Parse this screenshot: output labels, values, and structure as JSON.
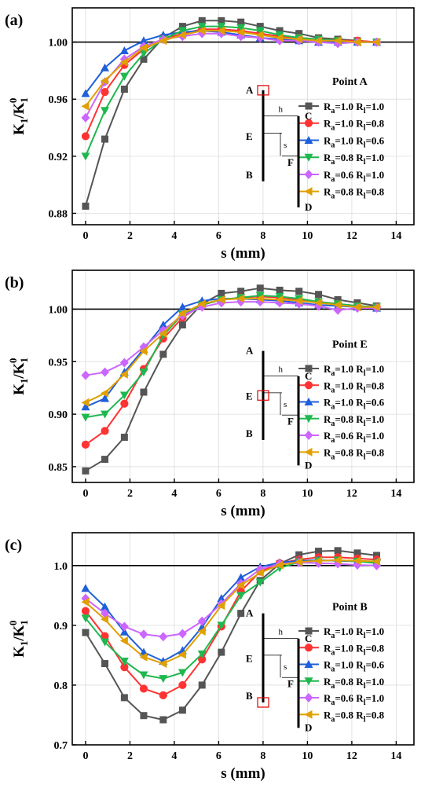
{
  "chart_data": [
    {
      "type": "line",
      "panel_label": "(a)",
      "xlabel": "s (mm)",
      "ylabel_main": "K",
      "ylabel_sub": "1",
      "ylabel_den": "K",
      "ylabel_den_sub": "1",
      "ylabel_den_sup": "0",
      "xlim": [
        -0.6,
        14.8
      ],
      "ylim": [
        0.872,
        1.024
      ],
      "xticks": [
        0,
        2,
        4,
        6,
        8,
        10,
        12,
        14
      ],
      "yticks": [
        0.88,
        0.92,
        0.96,
        1.0
      ],
      "ytick_labels": [
        "0.88",
        "0.92",
        "0.96",
        "1.00"
      ],
      "reference_line": 1.0,
      "legend_title": "Point A",
      "highlight": "A",
      "x": [
        0,
        0.87,
        1.75,
        2.62,
        3.5,
        4.37,
        5.25,
        6.12,
        7.0,
        7.87,
        8.75,
        9.62,
        10.5,
        11.37,
        12.25,
        13.12
      ],
      "series": [
        {
          "name_ra": "1.0",
          "name_rl": "1.0",
          "marker": "square",
          "color": "#555555",
          "values": [
            0.885,
            0.932,
            0.967,
            0.988,
            1.003,
            1.011,
            1.015,
            1.015,
            1.014,
            1.011,
            1.008,
            1.006,
            1.003,
            1.002,
            1.001,
            1.0
          ]
        },
        {
          "name_ra": "1.0",
          "name_rl": "0.8",
          "marker": "circle",
          "color": "#ff3333",
          "values": [
            0.934,
            0.965,
            0.984,
            0.995,
            1.002,
            1.006,
            1.009,
            1.009,
            1.008,
            1.006,
            1.004,
            1.003,
            1.002,
            1.001,
            1.001,
            1.0
          ]
        },
        {
          "name_ra": "1.0",
          "name_rl": "0.6",
          "marker": "triangle-up",
          "color": "#1f5fd9",
          "values": [
            0.964,
            0.982,
            0.994,
            1.001,
            1.005,
            1.007,
            1.008,
            1.007,
            1.005,
            1.003,
            1.002,
            1.001,
            1.0,
            1.0,
            1.0,
            1.0
          ]
        },
        {
          "name_ra": "0.8",
          "name_rl": "1.0",
          "marker": "triangle-down",
          "color": "#1fb84f",
          "values": [
            0.92,
            0.952,
            0.976,
            0.992,
            1.002,
            1.008,
            1.011,
            1.011,
            1.01,
            1.008,
            1.005,
            1.003,
            1.002,
            1.001,
            1.0,
            1.0
          ]
        },
        {
          "name_ra": "0.6",
          "name_rl": "1.0",
          "marker": "diamond",
          "color": "#cc66ff",
          "values": [
            0.947,
            0.972,
            0.988,
            0.997,
            1.002,
            1.004,
            1.006,
            1.006,
            1.004,
            1.003,
            1.001,
            1.001,
            1.0,
            0.999,
            1.0,
            1.0
          ]
        },
        {
          "name_ra": "0.8",
          "name_rl": "0.8",
          "marker": "triangle-left",
          "color": "#e0a000",
          "values": [
            0.955,
            0.973,
            0.986,
            0.996,
            1.001,
            1.005,
            1.008,
            1.008,
            1.007,
            1.005,
            1.003,
            1.002,
            1.001,
            1.001,
            1.0,
            1.0
          ]
        }
      ],
      "schematic": {
        "label_A": "A",
        "label_E": "E",
        "label_B": "B",
        "label_C": "C",
        "label_F": "F",
        "label_D": "D",
        "label_h": "h",
        "label_s": "s"
      }
    },
    {
      "type": "line",
      "panel_label": "(b)",
      "xlabel": "s (mm)",
      "ylabel_main": "K",
      "ylabel_sub": "1",
      "ylabel_den": "K",
      "ylabel_den_sub": "1",
      "ylabel_den_sup": "0",
      "xlim": [
        -0.6,
        14.8
      ],
      "ylim": [
        0.835,
        1.037
      ],
      "xticks": [
        0,
        2,
        4,
        6,
        8,
        10,
        12,
        14
      ],
      "yticks": [
        0.85,
        0.9,
        0.95,
        1.0
      ],
      "ytick_labels": [
        "0.85",
        "0.90",
        "0.95",
        "1.00"
      ],
      "reference_line": 1.0,
      "legend_title": "Point E",
      "highlight": "E",
      "x": [
        0,
        0.87,
        1.75,
        2.62,
        3.5,
        4.37,
        5.25,
        6.12,
        7.0,
        7.87,
        8.75,
        9.62,
        10.5,
        11.37,
        12.25,
        13.12
      ],
      "series": [
        {
          "name_ra": "1.0",
          "name_rl": "1.0",
          "marker": "square",
          "color": "#555555",
          "values": [
            0.846,
            0.857,
            0.878,
            0.921,
            0.957,
            0.985,
            1.005,
            1.015,
            1.017,
            1.02,
            1.018,
            1.017,
            1.014,
            1.009,
            1.006,
            1.003
          ]
        },
        {
          "name_ra": "1.0",
          "name_rl": "0.8",
          "marker": "circle",
          "color": "#ff3333",
          "values": [
            0.871,
            0.884,
            0.91,
            0.943,
            0.972,
            0.992,
            1.004,
            1.009,
            1.011,
            1.012,
            1.011,
            1.009,
            1.007,
            1.005,
            1.003,
            1.002
          ]
        },
        {
          "name_ra": "1.0",
          "name_rl": "0.6",
          "marker": "triangle-up",
          "color": "#1f5fd9",
          "values": [
            0.907,
            0.915,
            0.94,
            0.962,
            0.985,
            1.002,
            1.008,
            1.01,
            1.01,
            1.009,
            1.008,
            1.006,
            1.004,
            1.003,
            1.002,
            1.001
          ]
        },
        {
          "name_ra": "0.8",
          "name_rl": "1.0",
          "marker": "triangle-down",
          "color": "#1fb84f",
          "values": [
            0.897,
            0.9,
            0.918,
            0.94,
            0.975,
            0.995,
            1.004,
            1.009,
            1.011,
            1.013,
            1.012,
            1.01,
            1.007,
            1.005,
            1.003,
            1.002
          ]
        },
        {
          "name_ra": "0.6",
          "name_rl": "1.0",
          "marker": "diamond",
          "color": "#cc66ff",
          "values": [
            0.937,
            0.94,
            0.949,
            0.964,
            0.98,
            0.994,
            1.002,
            1.006,
            1.007,
            1.007,
            1.006,
            1.005,
            1.003,
            0.999,
            1.001,
            1.001
          ]
        },
        {
          "name_ra": "0.8",
          "name_rl": "0.8",
          "marker": "triangle-left",
          "color": "#e0a000",
          "values": [
            0.911,
            0.92,
            0.938,
            0.96,
            0.977,
            0.996,
            1.005,
            1.009,
            1.01,
            1.01,
            1.009,
            1.008,
            1.006,
            1.004,
            1.002,
            1.002
          ]
        }
      ],
      "schematic": {
        "label_A": "A",
        "label_E": "E",
        "label_B": "B",
        "label_C": "C",
        "label_F": "F",
        "label_D": "D",
        "label_h": "h",
        "label_s": "s"
      }
    },
    {
      "type": "line",
      "panel_label": "(c)",
      "xlabel": "s (mm)",
      "ylabel_main": "K",
      "ylabel_sub": "1",
      "ylabel_den": "K",
      "ylabel_den_sub": "1",
      "ylabel_den_sup": "0",
      "xlim": [
        -0.6,
        14.8
      ],
      "ylim": [
        0.7,
        1.055
      ],
      "xticks": [
        0,
        2,
        4,
        6,
        8,
        10,
        12,
        14
      ],
      "yticks": [
        0.7,
        0.8,
        0.9,
        1.0
      ],
      "ytick_labels": [
        "0.7",
        "0.8",
        "0.9",
        "1.0"
      ],
      "reference_line": 1.0,
      "legend_title": "Point B",
      "highlight": "B",
      "x": [
        0,
        0.87,
        1.75,
        2.62,
        3.5,
        4.37,
        5.25,
        6.12,
        7.0,
        7.87,
        8.75,
        9.62,
        10.5,
        11.37,
        12.25,
        13.12
      ],
      "series": [
        {
          "name_ra": "1.0",
          "name_rl": "1.0",
          "marker": "square",
          "color": "#555555",
          "values": [
            0.888,
            0.836,
            0.779,
            0.749,
            0.742,
            0.758,
            0.8,
            0.855,
            0.92,
            0.975,
            1.003,
            1.018,
            1.024,
            1.025,
            1.021,
            1.017
          ]
        },
        {
          "name_ra": "1.0",
          "name_rl": "0.8",
          "marker": "circle",
          "color": "#ff3333",
          "values": [
            0.924,
            0.882,
            0.83,
            0.794,
            0.783,
            0.8,
            0.843,
            0.898,
            0.957,
            0.99,
            1.004,
            1.01,
            1.014,
            1.014,
            1.012,
            1.01
          ]
        },
        {
          "name_ra": "1.0",
          "name_rl": "0.6",
          "marker": "triangle-up",
          "color": "#1f5fd9",
          "values": [
            0.962,
            0.931,
            0.889,
            0.855,
            0.84,
            0.858,
            0.897,
            0.945,
            0.98,
            0.998,
            1.005,
            1.008,
            1.009,
            1.008,
            1.007,
            1.006
          ]
        },
        {
          "name_ra": "0.8",
          "name_rl": "1.0",
          "marker": "triangle-down",
          "color": "#1fb84f",
          "values": [
            0.912,
            0.872,
            0.84,
            0.817,
            0.811,
            0.821,
            0.852,
            0.9,
            0.95,
            0.972,
            0.996,
            1.006,
            1.008,
            1.009,
            1.007,
            1.004
          ]
        },
        {
          "name_ra": "0.6",
          "name_rl": "1.0",
          "marker": "diamond",
          "color": "#cc66ff",
          "values": [
            0.945,
            0.92,
            0.898,
            0.885,
            0.881,
            0.886,
            0.907,
            0.936,
            0.97,
            0.994,
            1.003,
            1.005,
            1.004,
            1.003,
            1.001,
            1.0
          ]
        },
        {
          "name_ra": "0.8",
          "name_rl": "0.8",
          "marker": "triangle-left",
          "color": "#e0a000",
          "values": [
            0.939,
            0.91,
            0.874,
            0.847,
            0.836,
            0.851,
            0.89,
            0.933,
            0.967,
            0.988,
            1.001,
            1.006,
            1.008,
            1.009,
            1.008,
            1.007
          ]
        }
      ],
      "schematic": {
        "label_A": "A",
        "label_E": "E",
        "label_B": "B",
        "label_C": "C",
        "label_F": "F",
        "label_D": "D",
        "label_h": "h",
        "label_s": "s"
      }
    }
  ]
}
